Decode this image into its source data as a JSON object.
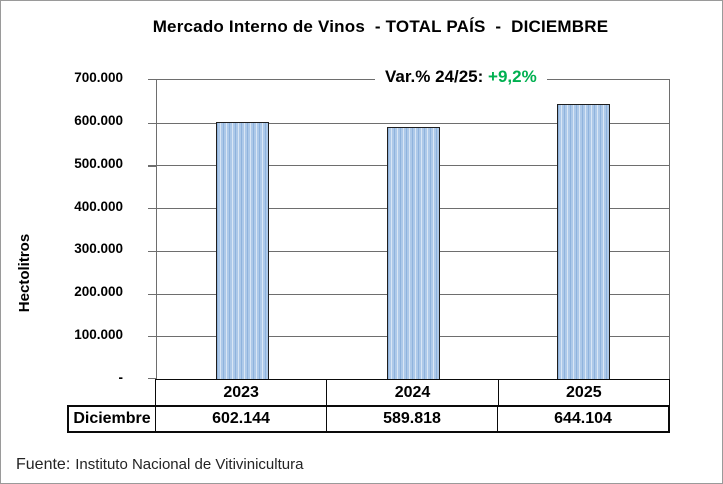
{
  "title": "Mercado Interno de Vinos  - TOTAL PAÍS  -  DICIEMBRE",
  "annotation": {
    "label": "Var.% 24/25:",
    "value": "+9,2%"
  },
  "y_axis": {
    "label": "Hectolitros",
    "ticks": [
      "700.000",
      "600.000",
      "500.000",
      "400.000",
      "300.000",
      "200.000",
      "100.000",
      "-"
    ]
  },
  "chart_data": {
    "type": "bar",
    "categories": [
      "2023",
      "2024",
      "2025"
    ],
    "values": [
      602144,
      589818,
      644104
    ],
    "value_labels": [
      "602.144",
      "589.818",
      "644.104"
    ],
    "title": "Mercado Interno de Vinos - TOTAL PAÍS - DICIEMBRE",
    "xlabel": "",
    "ylabel": "Hectolitros",
    "ylim": [
      0,
      700000
    ],
    "ytick_step": 100000,
    "grid": true,
    "legend": false,
    "annotation": "Var.% 24/25: +9,2%",
    "colors": {
      "bar_fill": "#ADC9E9",
      "bar_stripe_light": "#D9E6F5",
      "bar_stripe_dark": "#8FB3DD",
      "bar_border": "#1F1F1F",
      "annotation_value": "#00B050",
      "grid": "#6E6E6E"
    }
  },
  "table": {
    "row_label": "Diciembre",
    "columns": [
      "2023",
      "2024",
      "2025"
    ],
    "values": [
      "602.144",
      "589.818",
      "644.104"
    ]
  },
  "footer": {
    "prefix": "Fuente:",
    "text": "Instituto Nacional de Vitivinicultura"
  }
}
